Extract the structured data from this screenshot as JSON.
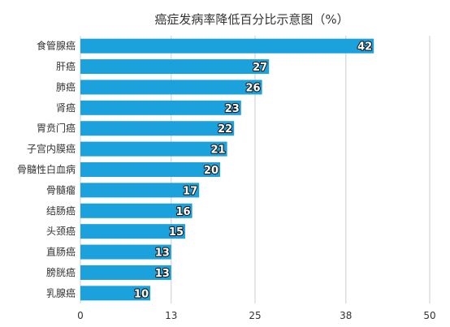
{
  "chart_data": {
    "type": "bar",
    "orientation": "horizontal",
    "title": "癌症发病率降低百分比示意图（%）",
    "categories": [
      "食管腺癌",
      "肝癌",
      "肺癌",
      "肾癌",
      "胃贲门癌",
      "子宫内膜癌",
      "骨髓性白血病",
      "骨髓瘤",
      "结肠癌",
      "头颈癌",
      "直肠癌",
      "膀胱癌",
      "乳腺癌"
    ],
    "values": [
      42,
      27,
      26,
      23,
      22,
      21,
      20,
      17,
      16,
      15,
      13,
      13,
      10
    ],
    "xlim": [
      0,
      50
    ],
    "xticks": [
      0,
      13,
      25,
      38,
      50
    ],
    "grid": true,
    "data_labels": true,
    "bar_color": "#1ba1dc",
    "grid_color": "#cccccc",
    "label_color": "#333333"
  }
}
